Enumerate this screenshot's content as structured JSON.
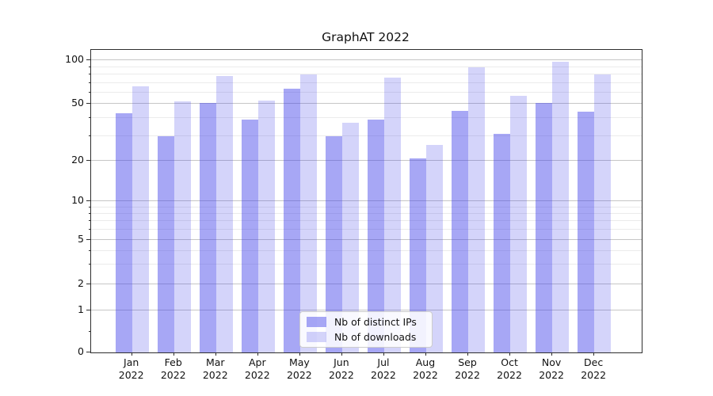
{
  "chart_data": {
    "type": "bar",
    "title": "GraphAT 2022",
    "year": "2022",
    "months": [
      "Jan",
      "Feb",
      "Mar",
      "Apr",
      "May",
      "Jun",
      "Jul",
      "Aug",
      "Sep",
      "Oct",
      "Nov",
      "Dec"
    ],
    "series": [
      {
        "name": "Nb of distinct IPs",
        "color": "rgba(60,60,232,0.45)",
        "values": [
          43,
          30,
          51,
          39,
          64,
          30,
          39,
          21,
          45,
          31,
          51,
          44
        ]
      },
      {
        "name": "Nb of downloads",
        "color": "rgba(60,60,232,0.22)",
        "values": [
          66,
          52,
          78,
          53,
          80,
          37,
          76,
          26,
          90,
          57,
          98,
          80
        ]
      }
    ],
    "y_axis": {
      "scale": "symlog",
      "major_ticks": [
        100,
        50,
        20,
        10,
        5,
        2,
        1,
        0
      ],
      "minor_ticks": [
        0.5,
        3,
        4,
        6,
        7,
        8,
        9,
        30,
        40,
        60,
        70,
        80,
        90
      ],
      "ylim": [
        0,
        120
      ]
    },
    "legend": {
      "position": "lower center"
    },
    "grid": true
  }
}
